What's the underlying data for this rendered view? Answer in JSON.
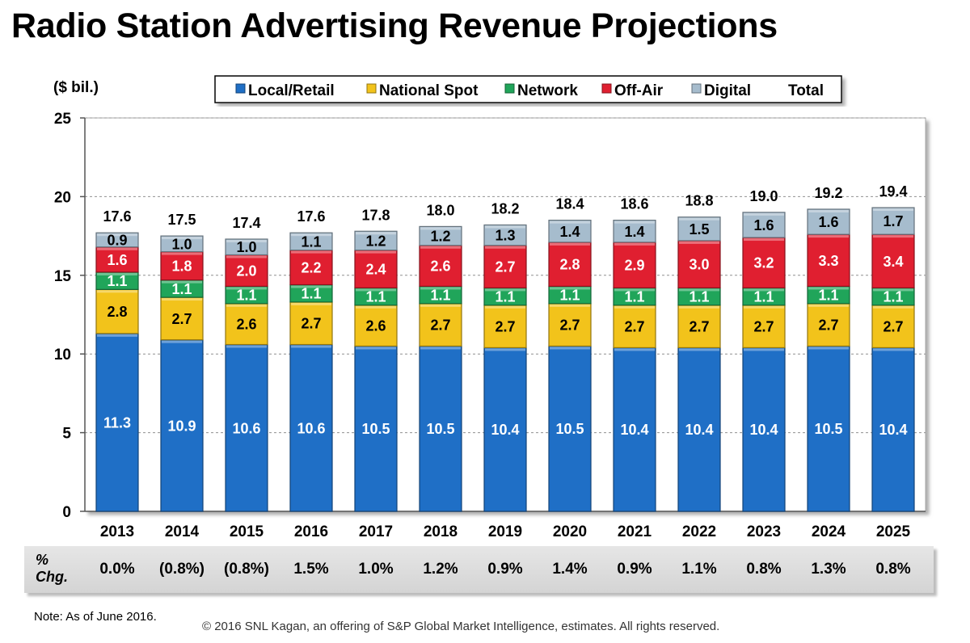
{
  "page": {
    "title": "Radio Station Advertising Revenue Projections"
  },
  "chart_data": {
    "type": "bar",
    "stacked": true,
    "title": "Radio Station Advertising Revenue Projections",
    "ylabel": "($ bil.)",
    "xlabel": "",
    "ylim": [
      0,
      25
    ],
    "yticks": [
      0,
      5,
      10,
      15,
      20,
      25
    ],
    "grid": true,
    "legend_position": "top",
    "categories": [
      "2013",
      "2014",
      "2015",
      "2016",
      "2017",
      "2018",
      "2019",
      "2020",
      "2021",
      "2022",
      "2023",
      "2024",
      "2025"
    ],
    "series": [
      {
        "name": "Local/Retail",
        "color": "#1f6fc6",
        "values": [
          11.3,
          10.9,
          10.6,
          10.6,
          10.5,
          10.5,
          10.4,
          10.5,
          10.4,
          10.4,
          10.4,
          10.5,
          10.4
        ]
      },
      {
        "name": "National Spot",
        "color": "#f2c31b",
        "values": [
          2.8,
          2.7,
          2.6,
          2.7,
          2.6,
          2.7,
          2.7,
          2.7,
          2.7,
          2.7,
          2.7,
          2.7,
          2.7
        ]
      },
      {
        "name": "Network",
        "color": "#20a55a",
        "values": [
          1.1,
          1.1,
          1.1,
          1.1,
          1.1,
          1.1,
          1.1,
          1.1,
          1.1,
          1.1,
          1.1,
          1.1,
          1.1
        ]
      },
      {
        "name": "Off-Air",
        "color": "#e01f30",
        "values": [
          1.6,
          1.8,
          2.0,
          2.2,
          2.4,
          2.6,
          2.7,
          2.8,
          2.9,
          3.0,
          3.2,
          3.3,
          3.4
        ]
      },
      {
        "name": "Digital",
        "color": "#a6bccd",
        "values": [
          0.9,
          1.0,
          1.0,
          1.1,
          1.2,
          1.2,
          1.3,
          1.4,
          1.4,
          1.5,
          1.6,
          1.6,
          1.7
        ]
      }
    ],
    "totals_legend_label": "Total",
    "totals": [
      "17.6",
      "17.5",
      "17.4",
      "17.6",
      "17.8",
      "18.0",
      "18.2",
      "18.4",
      "18.6",
      "18.8",
      "19.0",
      "19.2",
      "19.4"
    ],
    "pct_change_label": "% Chg.",
    "pct_change": [
      "0.0%",
      "(0.8%)",
      "(0.8%)",
      "1.5%",
      "1.0%",
      "1.2%",
      "0.9%",
      "1.4%",
      "0.9%",
      "1.1%",
      "0.8%",
      "1.3%",
      "0.8%"
    ]
  },
  "footer": {
    "note": "Note: As of June 2016.",
    "copyright": "© 2016 SNL Kagan, an offering of S&P Global Market Intelligence, estimates. All rights reserved."
  }
}
